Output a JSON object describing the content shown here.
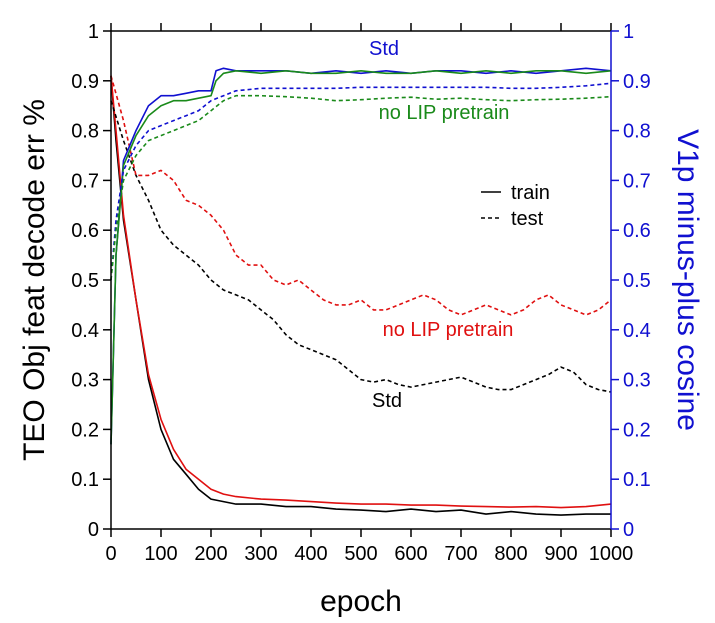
{
  "chart_data": {
    "type": "line",
    "xlabel": "epoch",
    "ylabel_left": "TEO Obj feat decode err %",
    "ylabel_right": "V1p minus-plus cosine",
    "xlim": [
      0,
      1000
    ],
    "ylim_left": [
      0,
      1
    ],
    "ylim_right": [
      0,
      1
    ],
    "x_ticks": [
      "0",
      "100",
      "200",
      "300",
      "400",
      "500",
      "600",
      "700",
      "800",
      "900",
      "1000"
    ],
    "y_ticks_left": [
      "0",
      "0.1",
      "0.2",
      "0.3",
      "0.4",
      "0.5",
      "0.6",
      "0.7",
      "0.8",
      "0.9",
      "1"
    ],
    "y_ticks_right": [
      "0",
      "0.1",
      "0.2",
      "0.3",
      "0.4",
      "0.5",
      "0.6",
      "0.7",
      "0.8",
      "0.9",
      "1"
    ],
    "grid": false,
    "legend": {
      "position": "right-middle",
      "entries": [
        {
          "label": "train",
          "style": "solid"
        },
        {
          "label": "test",
          "style": "dashed"
        }
      ]
    },
    "annotations": [
      {
        "text": "Std",
        "color": "#1010d0"
      },
      {
        "text": "no LIP pretrain",
        "color": "#1a8a1a"
      },
      {
        "text": "no LIP pretrain",
        "color": "#e01010"
      },
      {
        "text": "Std",
        "color": "#000000"
      }
    ],
    "colors": {
      "axis": "#000000",
      "right_axis": "#1010d0",
      "std_err": "#000000",
      "nolip_err": "#e01010",
      "std_cos": "#1010d0",
      "nolip_cos": "#1a8a1a"
    },
    "series": [
      {
        "key": "std_err_train",
        "axis": "left",
        "style": "solid",
        "color": "#000000",
        "x": [
          0,
          10,
          25,
          50,
          75,
          100,
          125,
          150,
          175,
          200,
          225,
          250,
          300,
          350,
          400,
          450,
          500,
          550,
          600,
          650,
          700,
          750,
          800,
          850,
          900,
          950,
          1000
        ],
        "y": [
          0.91,
          0.78,
          0.62,
          0.46,
          0.3,
          0.2,
          0.14,
          0.11,
          0.08,
          0.06,
          0.055,
          0.05,
          0.05,
          0.045,
          0.045,
          0.04,
          0.038,
          0.035,
          0.04,
          0.035,
          0.038,
          0.03,
          0.035,
          0.03,
          0.028,
          0.03,
          0.03
        ]
      },
      {
        "key": "nolip_err_train",
        "axis": "left",
        "style": "solid",
        "color": "#e01010",
        "x": [
          0,
          10,
          25,
          50,
          75,
          100,
          125,
          150,
          175,
          200,
          225,
          250,
          300,
          350,
          400,
          450,
          500,
          550,
          600,
          650,
          700,
          750,
          800,
          850,
          900,
          950,
          1000
        ],
        "y": [
          0.91,
          0.8,
          0.63,
          0.46,
          0.31,
          0.22,
          0.16,
          0.12,
          0.1,
          0.08,
          0.07,
          0.065,
          0.06,
          0.058,
          0.055,
          0.052,
          0.05,
          0.05,
          0.048,
          0.048,
          0.046,
          0.045,
          0.044,
          0.045,
          0.043,
          0.045,
          0.05
        ]
      },
      {
        "key": "std_err_test",
        "axis": "left",
        "style": "dashed",
        "color": "#000000",
        "x": [
          0,
          25,
          50,
          75,
          100,
          125,
          150,
          175,
          200,
          225,
          250,
          275,
          300,
          325,
          350,
          375,
          400,
          425,
          450,
          475,
          500,
          525,
          550,
          575,
          600,
          625,
          650,
          675,
          700,
          725,
          750,
          775,
          800,
          825,
          850,
          875,
          900,
          925,
          950,
          975,
          1000
        ],
        "y": [
          0.86,
          0.78,
          0.71,
          0.66,
          0.6,
          0.57,
          0.55,
          0.53,
          0.5,
          0.48,
          0.47,
          0.46,
          0.44,
          0.42,
          0.39,
          0.37,
          0.36,
          0.35,
          0.34,
          0.32,
          0.3,
          0.295,
          0.3,
          0.29,
          0.285,
          0.29,
          0.295,
          0.3,
          0.305,
          0.295,
          0.285,
          0.28,
          0.28,
          0.29,
          0.3,
          0.31,
          0.325,
          0.315,
          0.29,
          0.28,
          0.275
        ]
      },
      {
        "key": "nolip_err_test",
        "axis": "left",
        "style": "dashed",
        "color": "#e01010",
        "x": [
          0,
          25,
          50,
          75,
          100,
          125,
          150,
          175,
          200,
          225,
          250,
          275,
          300,
          325,
          350,
          375,
          400,
          425,
          450,
          475,
          500,
          525,
          550,
          575,
          600,
          625,
          650,
          675,
          700,
          725,
          750,
          775,
          800,
          825,
          850,
          875,
          900,
          925,
          950,
          975,
          1000
        ],
        "y": [
          0.91,
          0.82,
          0.71,
          0.71,
          0.72,
          0.7,
          0.66,
          0.65,
          0.63,
          0.6,
          0.55,
          0.53,
          0.53,
          0.5,
          0.49,
          0.5,
          0.48,
          0.46,
          0.45,
          0.45,
          0.46,
          0.44,
          0.44,
          0.45,
          0.46,
          0.47,
          0.46,
          0.44,
          0.43,
          0.44,
          0.45,
          0.44,
          0.43,
          0.44,
          0.46,
          0.47,
          0.45,
          0.44,
          0.43,
          0.44,
          0.46
        ]
      },
      {
        "key": "std_cos_train",
        "axis": "right",
        "style": "solid",
        "color": "#1010d0",
        "x": [
          0,
          10,
          25,
          50,
          75,
          100,
          125,
          150,
          175,
          200,
          210,
          225,
          250,
          300,
          350,
          400,
          450,
          500,
          550,
          600,
          650,
          700,
          750,
          800,
          850,
          900,
          950,
          1000
        ],
        "y": [
          0.17,
          0.55,
          0.74,
          0.8,
          0.85,
          0.87,
          0.87,
          0.875,
          0.88,
          0.88,
          0.92,
          0.925,
          0.92,
          0.92,
          0.92,
          0.915,
          0.92,
          0.915,
          0.92,
          0.915,
          0.92,
          0.92,
          0.915,
          0.92,
          0.915,
          0.92,
          0.925,
          0.92
        ]
      },
      {
        "key": "nolip_cos_train",
        "axis": "right",
        "style": "solid",
        "color": "#1a8a1a",
        "x": [
          0,
          10,
          25,
          50,
          75,
          100,
          125,
          150,
          175,
          200,
          210,
          225,
          250,
          300,
          350,
          400,
          450,
          500,
          550,
          600,
          650,
          700,
          750,
          800,
          850,
          900,
          950,
          1000
        ],
        "y": [
          0.17,
          0.55,
          0.73,
          0.79,
          0.83,
          0.85,
          0.86,
          0.86,
          0.865,
          0.87,
          0.9,
          0.915,
          0.92,
          0.915,
          0.92,
          0.915,
          0.915,
          0.92,
          0.915,
          0.915,
          0.92,
          0.915,
          0.92,
          0.915,
          0.92,
          0.92,
          0.915,
          0.92
        ]
      },
      {
        "key": "std_cos_test",
        "axis": "right",
        "style": "dashed",
        "color": "#1010d0",
        "x": [
          0,
          10,
          25,
          50,
          75,
          100,
          125,
          150,
          175,
          200,
          225,
          250,
          300,
          350,
          400,
          450,
          500,
          550,
          600,
          650,
          700,
          750,
          800,
          850,
          900,
          950,
          1000
        ],
        "y": [
          0.5,
          0.62,
          0.72,
          0.77,
          0.8,
          0.81,
          0.82,
          0.83,
          0.84,
          0.86,
          0.87,
          0.88,
          0.885,
          0.885,
          0.885,
          0.885,
          0.887,
          0.887,
          0.887,
          0.887,
          0.887,
          0.887,
          0.885,
          0.885,
          0.887,
          0.89,
          0.895
        ]
      },
      {
        "key": "nolip_cos_test",
        "axis": "right",
        "style": "dashed",
        "color": "#1a8a1a",
        "x": [
          0,
          10,
          25,
          50,
          75,
          100,
          125,
          150,
          175,
          200,
          225,
          250,
          300,
          350,
          400,
          450,
          500,
          550,
          600,
          650,
          700,
          750,
          800,
          850,
          900,
          950,
          1000
        ],
        "y": [
          0.5,
          0.6,
          0.7,
          0.75,
          0.78,
          0.79,
          0.8,
          0.81,
          0.82,
          0.84,
          0.86,
          0.87,
          0.87,
          0.868,
          0.865,
          0.86,
          0.862,
          0.865,
          0.867,
          0.863,
          0.865,
          0.862,
          0.86,
          0.862,
          0.863,
          0.865,
          0.868
        ]
      }
    ]
  }
}
